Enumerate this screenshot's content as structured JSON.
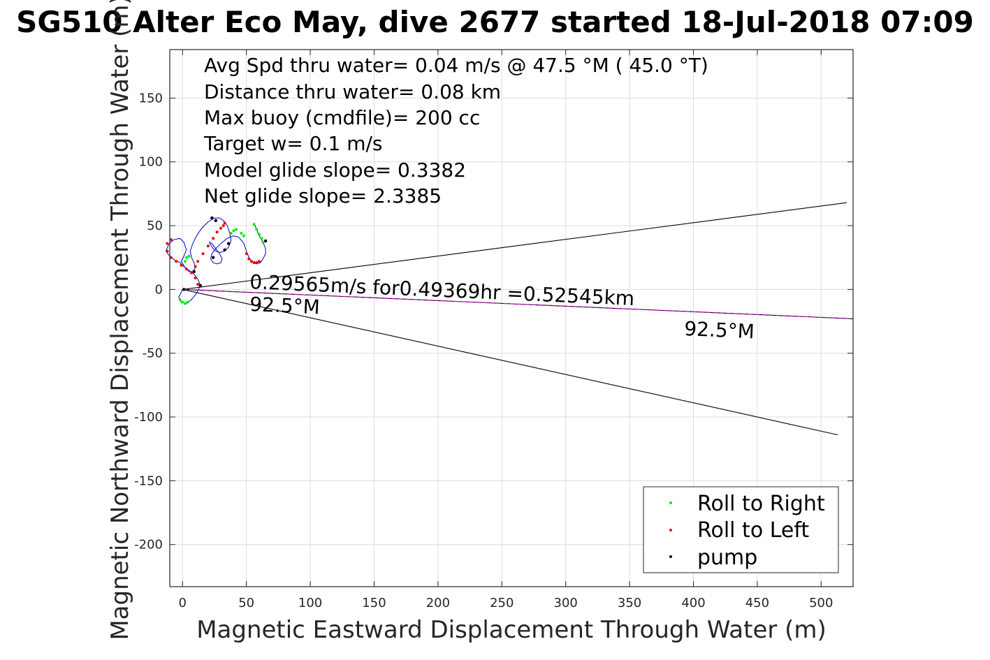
{
  "chart_data": {
    "type": "scatter",
    "title": "SG510 Alter Eco May, dive 2677 started 18-Jul-2018 07:09",
    "xlabel": "Magnetic Eastward Displacement Through Water (m)",
    "ylabel": "Magnetic Northward Displacement Through Water (m)",
    "xlim": [
      -10,
      525
    ],
    "ylim": [
      -233,
      188
    ],
    "xticks": [
      0,
      50,
      100,
      150,
      200,
      250,
      300,
      350,
      400,
      450,
      500
    ],
    "yticks": [
      -200,
      -150,
      -100,
      -50,
      0,
      50,
      100,
      150
    ],
    "grid": true,
    "legend_position": "bottom-right",
    "info_text": [
      "Avg Spd thru water=  0.04 m/s @  47.5 °M ( 45.0 °T)",
      "Distance thru water=  0.08 km",
      "Max buoy (cmdfile)= 200 cc",
      "Target w= 0.1 m/s",
      "Model glide slope= 0.3382",
      "Net glide slope= 2.3385"
    ],
    "annotations": {
      "speed_text": "0.29565m/s for0.49369hr =0.52545km",
      "heading_near": "92.5°M",
      "heading_far": "92.5°M"
    },
    "lines": [
      {
        "name": "upper-bound",
        "color": "#000000",
        "x": [
          0,
          520
        ],
        "y": [
          0,
          68
        ]
      },
      {
        "name": "lower-bound",
        "color": "#000000",
        "x": [
          0,
          513
        ],
        "y": [
          0,
          -114
        ]
      },
      {
        "name": "heading",
        "color": "#000000",
        "x": [
          0,
          525
        ],
        "y": [
          0,
          -23
        ]
      },
      {
        "name": "heading-overlay",
        "color": "#cc00cc",
        "x": [
          0,
          525
        ],
        "y": [
          0,
          -23
        ]
      }
    ],
    "track": {
      "color": "#0000cc",
      "x": [
        0,
        -3,
        -1,
        3,
        7,
        11,
        14,
        12,
        9,
        5,
        1,
        -2,
        -6,
        -10,
        -13,
        -11,
        -7,
        -2,
        1,
        3,
        1,
        -1,
        2,
        5,
        8,
        10,
        9,
        7,
        6,
        8,
        11,
        15,
        20,
        25,
        29,
        32,
        35,
        37,
        38,
        36,
        33,
        29,
        26,
        24,
        22,
        21,
        23,
        26,
        29,
        31,
        30,
        27,
        24,
        22,
        23,
        26,
        30,
        35,
        40,
        44,
        48,
        50,
        52,
        55,
        58,
        61,
        63,
        65,
        65,
        63,
        60,
        58,
        56
      ],
      "y": [
        0,
        -6,
        -10,
        -11,
        -8,
        -3,
        3,
        8,
        12,
        15,
        18,
        21,
        23,
        26,
        30,
        35,
        39,
        40,
        37,
        31,
        26,
        22,
        17,
        14,
        14,
        17,
        21,
        25,
        30,
        36,
        42,
        48,
        53,
        56,
        56,
        54,
        50,
        44,
        38,
        33,
        30,
        29,
        30,
        32,
        35,
        37,
        36,
        32,
        28,
        24,
        21,
        20,
        21,
        24,
        28,
        32,
        36,
        40,
        42,
        41,
        36,
        30,
        25,
        21,
        20,
        21,
        24,
        28,
        32,
        37,
        42,
        47,
        52
      ]
    },
    "series": [
      {
        "name": "Roll to Right",
        "color": "#00ee00",
        "x": [
          -2,
          0,
          2,
          4,
          2,
          3,
          5,
          38,
          40,
          42,
          46,
          48,
          56,
          58,
          60,
          62,
          63
        ],
        "y": [
          -8,
          -10,
          -11,
          -10,
          22,
          25,
          26,
          44,
          46,
          47,
          44,
          42,
          51,
          47,
          43,
          40,
          37
        ]
      },
      {
        "name": "Roll to Left",
        "color": "#ee0000",
        "x": [
          12,
          10,
          7,
          3,
          -1,
          -5,
          -9,
          -12,
          -12,
          -9,
          10,
          12,
          16,
          20,
          24,
          27,
          30,
          32,
          33,
          50,
          52,
          54,
          56,
          58,
          60
        ],
        "y": [
          4,
          9,
          13,
          16,
          19,
          22,
          25,
          30,
          36,
          39,
          18,
          22,
          28,
          34,
          40,
          45,
          48,
          50,
          52,
          28,
          24,
          22,
          21,
          21,
          22
        ]
      },
      {
        "name": "pump",
        "color": "#000000",
        "x": [
          1,
          14,
          9,
          23,
          26,
          24,
          33,
          36,
          65
        ],
        "y": [
          0,
          3,
          14,
          56,
          54,
          25,
          31,
          36,
          38
        ]
      }
    ]
  }
}
